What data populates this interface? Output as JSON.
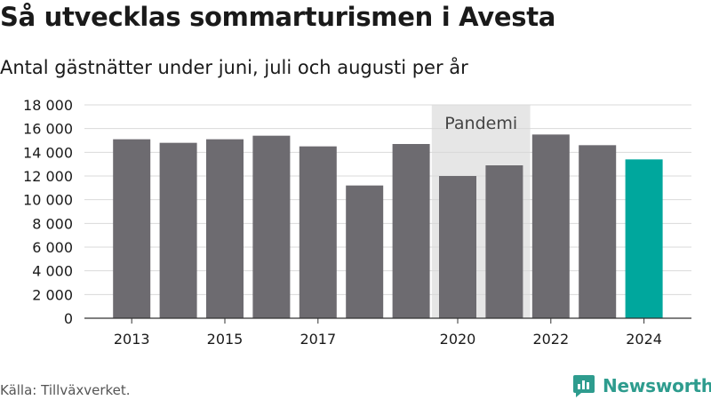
{
  "title": "Så utvecklas sommarturismen i Avesta",
  "subtitle": "Antal gästnätter under juni, juli och augusti per år",
  "source": "Källa: Tillväxverket.",
  "brand": "Newsworthy",
  "chart_data": {
    "type": "bar",
    "categories": [
      "2013",
      "2014",
      "2015",
      "2016",
      "2017",
      "2018",
      "2019",
      "2020",
      "2021",
      "2022",
      "2023",
      "2024"
    ],
    "values": [
      15100,
      14800,
      15100,
      15400,
      14500,
      11200,
      14700,
      12000,
      12900,
      15500,
      14600,
      13400
    ],
    "highlight_index": 11,
    "colors": {
      "bar": "#6d6b70",
      "highlight": "#00a79d",
      "band": "#e6e6e6",
      "grid": "#d9d9d9"
    },
    "ylim": [
      0,
      18000
    ],
    "yticks": [
      0,
      2000,
      4000,
      6000,
      8000,
      10000,
      12000,
      14000,
      16000,
      18000
    ],
    "ytick_labels": [
      "0",
      "2 000",
      "4 000",
      "6 000",
      "8 000",
      "10 000",
      "12 000",
      "14 000",
      "16 000",
      "18 000"
    ],
    "xtick_labels": [
      {
        "index": 0,
        "label": "2013"
      },
      {
        "index": 2,
        "label": "2015"
      },
      {
        "index": 4,
        "label": "2017"
      },
      {
        "index": 7,
        "label": "2020"
      },
      {
        "index": 9,
        "label": "2022"
      },
      {
        "index": 11,
        "label": "2024"
      }
    ],
    "annotation": {
      "label": "Pandemi",
      "from_index": 7,
      "to_index": 8
    },
    "grid": true,
    "legend": "none"
  }
}
